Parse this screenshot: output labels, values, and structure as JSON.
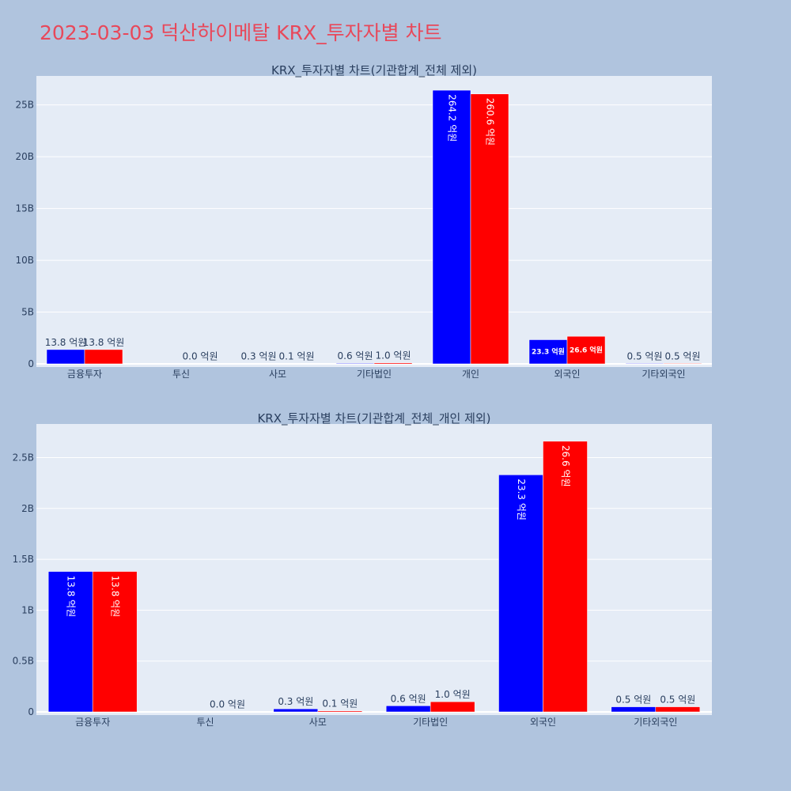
{
  "title": "2023-03-03 덕산하이메탈 KRX_투자자별 차트",
  "colors": {
    "buy": "#0000ff",
    "sell": "#ff0000",
    "plot_bg": "#e5ecf6",
    "page_bg": "#b0c4de",
    "title": "#e8485a"
  },
  "chart_data": [
    {
      "type": "bar",
      "title": "KRX_투자자별 차트(기관합계_전체 제외)",
      "categories": [
        "금융투자",
        "투신",
        "사모",
        "기타법인",
        "개인",
        "외국인",
        "기타외국인"
      ],
      "series": [
        {
          "values": [
            1380000000,
            0,
            30000000,
            60000000,
            26420000000,
            2330000000,
            50000000
          ],
          "labels": [
            "13.8 억원",
            "",
            "0.3 억원",
            "0.6 억원",
            "264.2 억원",
            "23.3 억원",
            "0.5 억원"
          ]
        },
        {
          "values": [
            1380000000,
            2000000,
            10000000,
            100000000,
            26060000000,
            2660000000,
            50000000
          ],
          "labels": [
            "13.8 억원",
            "0.0 억원",
            "0.1 억원",
            "1.0 억원",
            "260.6 억원",
            "26.6 억원",
            "0.5 억원"
          ]
        }
      ],
      "ylim": [
        0,
        27800000000
      ],
      "yticks": [
        0,
        5000000000,
        10000000000,
        15000000000,
        20000000000,
        25000000000
      ],
      "ytick_labels": [
        "0",
        "5B",
        "10B",
        "15B",
        "20B",
        "25B"
      ],
      "grid": true
    },
    {
      "type": "bar",
      "title": "KRX_투자자별 차트(기관합계_전체_개인 제외)",
      "categories": [
        "금융투자",
        "투신",
        "사모",
        "기타법인",
        "외국인",
        "기타외국인"
      ],
      "series": [
        {
          "values": [
            1380000000,
            0,
            30000000,
            60000000,
            2330000000,
            50000000
          ],
          "labels": [
            "13.8 억원",
            "",
            "0.3 억원",
            "0.6 억원",
            "23.3 억원",
            "0.5 억원"
          ]
        },
        {
          "values": [
            1380000000,
            2000000,
            10000000,
            100000000,
            2660000000,
            50000000
          ],
          "labels": [
            "13.8 억원",
            "0.0 억원",
            "0.1 억원",
            "1.0 억원",
            "26.6 억원",
            "0.5 억원"
          ]
        }
      ],
      "ylim": [
        0,
        2830000000
      ],
      "yticks": [
        0,
        500000000,
        1000000000,
        1500000000,
        2000000000,
        2500000000
      ],
      "ytick_labels": [
        "0",
        "0.5B",
        "1B",
        "1.5B",
        "2B",
        "2.5B"
      ],
      "grid": true
    }
  ]
}
